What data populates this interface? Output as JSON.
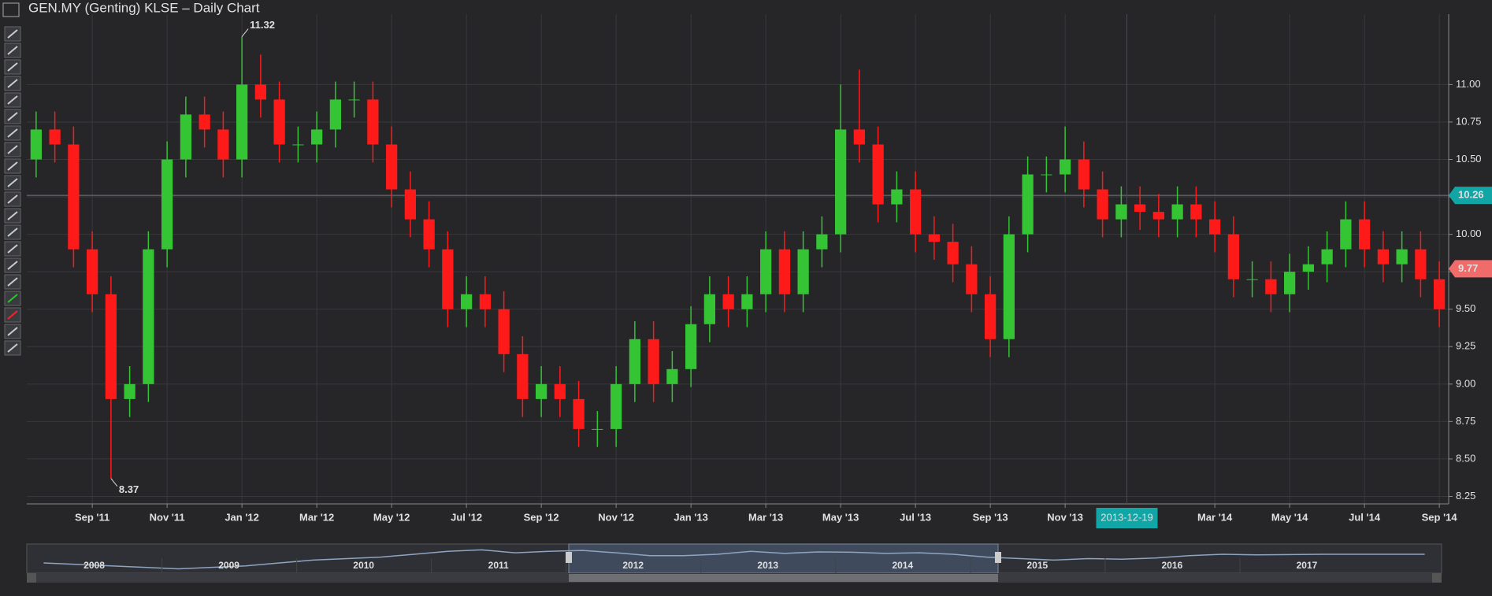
{
  "chart_data": {
    "type": "candlestick",
    "title": "GEN.MY (Genting) KLSE – Daily Chart",
    "up_color": "#34c434",
    "down_color": "#ff1a1a",
    "open": [
      10.5,
      10.7,
      10.6,
      9.9,
      9.6,
      8.9,
      9.0,
      9.9,
      10.5,
      10.8,
      10.7,
      10.5,
      11.0,
      10.9,
      10.6,
      10.6,
      10.7,
      10.9,
      10.9,
      10.6,
      10.3,
      10.1,
      9.9,
      9.5,
      9.6,
      9.5,
      9.2,
      8.9,
      9.0,
      8.9,
      8.7,
      8.7,
      9.0,
      9.3,
      9.0,
      9.1,
      9.4,
      9.6,
      9.5,
      9.6,
      9.9,
      9.6,
      9.9,
      10.0,
      10.7,
      10.6,
      10.2,
      10.3,
      10.0,
      9.95,
      9.8,
      9.6,
      9.3,
      10.0,
      10.4,
      10.4,
      10.5,
      10.3,
      10.1,
      10.2,
      10.15,
      10.1,
      10.2,
      10.1,
      10.0,
      9.7,
      9.7,
      9.6,
      9.75,
      9.8,
      9.9,
      10.1,
      9.9,
      9.8,
      9.9,
      9.7
    ],
    "high": [
      10.82,
      10.82,
      10.72,
      10.02,
      9.72,
      9.12,
      10.02,
      10.62,
      10.92,
      10.92,
      10.82,
      11.32,
      11.2,
      11.02,
      10.72,
      10.82,
      11.02,
      11.02,
      11.02,
      10.72,
      10.42,
      10.22,
      10.02,
      9.72,
      9.72,
      9.62,
      9.32,
      9.12,
      9.12,
      9.02,
      8.82,
      9.12,
      9.42,
      9.42,
      9.22,
      9.52,
      9.72,
      9.72,
      9.72,
      10.02,
      10.02,
      10.02,
      10.12,
      11.0,
      11.1,
      10.72,
      10.42,
      10.42,
      10.12,
      10.07,
      9.92,
      9.72,
      10.12,
      10.52,
      10.52,
      10.72,
      10.62,
      10.42,
      10.32,
      10.32,
      10.27,
      10.32,
      10.32,
      10.22,
      10.12,
      9.82,
      9.82,
      9.87,
      9.92,
      10.02,
      10.22,
      10.22,
      10.02,
      10.02,
      10.02,
      9.82
    ],
    "low": [
      10.38,
      10.48,
      9.78,
      9.48,
      8.37,
      8.78,
      8.88,
      9.78,
      10.38,
      10.58,
      10.38,
      10.38,
      10.78,
      10.48,
      10.48,
      10.48,
      10.58,
      10.78,
      10.48,
      10.18,
      9.98,
      9.78,
      9.38,
      9.38,
      9.38,
      9.08,
      8.78,
      8.78,
      8.78,
      8.58,
      8.58,
      8.58,
      8.88,
      8.88,
      8.88,
      8.98,
      9.28,
      9.38,
      9.38,
      9.48,
      9.48,
      9.48,
      9.78,
      9.88,
      10.48,
      10.08,
      10.08,
      9.88,
      9.83,
      9.68,
      9.48,
      9.18,
      9.18,
      9.88,
      10.28,
      10.28,
      10.18,
      9.98,
      9.98,
      10.03,
      9.98,
      9.98,
      9.98,
      9.88,
      9.58,
      9.58,
      9.48,
      9.48,
      9.63,
      9.68,
      9.78,
      9.78,
      9.68,
      9.68,
      9.58,
      9.38
    ],
    "close": [
      10.7,
      10.6,
      9.9,
      9.6,
      8.9,
      9.0,
      9.9,
      10.5,
      10.8,
      10.7,
      10.5,
      11.0,
      10.9,
      10.6,
      10.6,
      10.7,
      10.9,
      10.9,
      10.6,
      10.3,
      10.1,
      9.9,
      9.5,
      9.6,
      9.5,
      9.2,
      8.9,
      9.0,
      8.9,
      8.7,
      8.7,
      9.0,
      9.3,
      9.0,
      9.1,
      9.4,
      9.6,
      9.5,
      9.6,
      9.9,
      9.6,
      9.9,
      10.0,
      10.7,
      10.6,
      10.2,
      10.3,
      10.0,
      9.95,
      9.8,
      9.6,
      9.3,
      10.0,
      10.4,
      10.4,
      10.5,
      10.3,
      10.1,
      10.2,
      10.15,
      10.1,
      10.2,
      10.1,
      10.0,
      9.7,
      9.7,
      9.6,
      9.75,
      9.8,
      9.9,
      10.1,
      9.9,
      9.8,
      9.9,
      9.7,
      9.5
    ],
    "xlim": [
      -0.5,
      75.5
    ],
    "xticks": [
      {
        "value": 3,
        "label": "Sep '11"
      },
      {
        "value": 7,
        "label": "Nov '11"
      },
      {
        "value": 11,
        "label": "Jan '12"
      },
      {
        "value": 15,
        "label": "Mar '12"
      },
      {
        "value": 19,
        "label": "May '12"
      },
      {
        "value": 23,
        "label": "Jul '12"
      },
      {
        "value": 27,
        "label": "Sep '12"
      },
      {
        "value": 31,
        "label": "Nov '12"
      },
      {
        "value": 35,
        "label": "Jan '13"
      },
      {
        "value": 39,
        "label": "Mar '13"
      },
      {
        "value": 43,
        "label": "May '13"
      },
      {
        "value": 47,
        "label": "Jul '13"
      },
      {
        "value": 51,
        "label": "Sep '13"
      },
      {
        "value": 55,
        "label": "Nov '13"
      },
      {
        "value": 63,
        "label": "Mar '14"
      },
      {
        "value": 67,
        "label": "May '14"
      },
      {
        "value": 71,
        "label": "Jul '14"
      },
      {
        "value": 75,
        "label": "Sep '14"
      }
    ],
    "ylim": [
      8.2,
      11.47
    ],
    "yticks": [
      {
        "value": 8.25,
        "label": "8.25"
      },
      {
        "value": 8.5,
        "label": "8.50"
      },
      {
        "value": 8.75,
        "label": "8.75"
      },
      {
        "value": 9,
        "label": "9.00"
      },
      {
        "value": 9.25,
        "label": "9.25"
      },
      {
        "value": 9.5,
        "label": "9.50"
      },
      {
        "value": 9.75,
        "label": "9.75"
      },
      {
        "value": 10,
        "label": "10.00"
      },
      {
        "value": 10.25,
        "label": "10.25"
      },
      {
        "value": 10.5,
        "label": "10.50"
      },
      {
        "value": 10.75,
        "label": "10.75"
      },
      {
        "value": 11,
        "label": "11.00"
      }
    ],
    "grid": true,
    "crosshair": {
      "y": 10.26,
      "x_label": "2013-12-19"
    },
    "last_price": 9.77,
    "navigator": {
      "values": [
        6.5,
        6.0,
        5.5,
        5.0,
        4.5,
        5.0,
        5.5,
        6.5,
        7.5,
        8.0,
        8.5,
        9.5,
        10.5,
        11.0,
        10.0,
        10.5,
        10.8,
        10.0,
        9.0,
        9.0,
        9.5,
        10.5,
        9.8,
        10.3,
        10.2,
        9.8,
        10.0,
        9.5,
        8.5,
        8.0,
        7.5,
        8.0,
        7.8,
        8.2,
        9.0,
        9.5,
        9.3,
        9.4,
        9.5,
        9.5,
        9.5,
        9.5
      ],
      "ylim": [
        3,
        13
      ],
      "xlim": [
        2008,
        2018.5
      ],
      "xticks": [
        {
          "value": 2008.5,
          "label": "2008"
        },
        {
          "value": 2009.5,
          "label": "2009"
        },
        {
          "value": 2010.5,
          "label": "2010"
        },
        {
          "value": 2011.5,
          "label": "2011"
        },
        {
          "value": 2012.5,
          "label": "2012"
        },
        {
          "value": 2013.5,
          "label": "2013"
        },
        {
          "value": 2014.5,
          "label": "2014"
        },
        {
          "value": 2015.5,
          "label": "2015"
        },
        {
          "value": 2016.5,
          "label": "2016"
        },
        {
          "value": 2017.5,
          "label": "2017"
        }
      ]
    }
  }
}
